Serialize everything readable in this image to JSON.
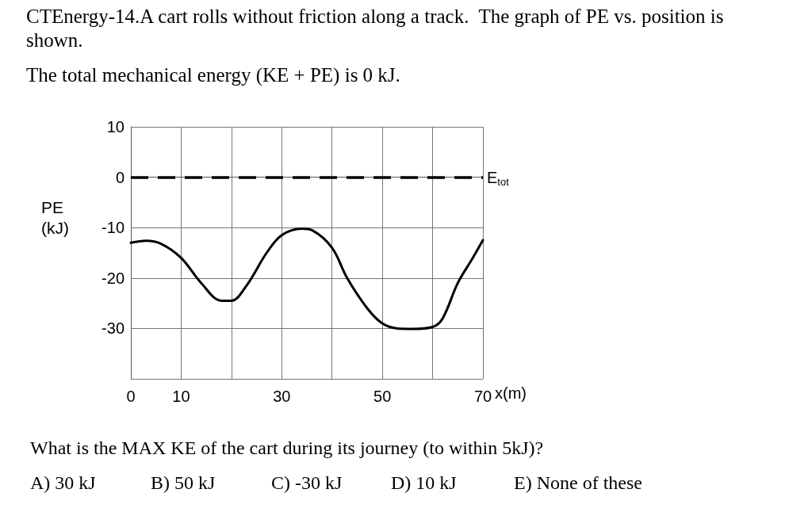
{
  "chart_data": {
    "type": "line",
    "title": "CTEnergy-14.A cart rolls without friction along a track.  The graph of PE vs. position is shown.",
    "subtitle": "The total mechanical energy (KE + PE) is 0 kJ.",
    "xlabel": "x(m)",
    "ylabel": "PE (kJ)",
    "x": [
      0,
      3,
      6,
      10,
      14,
      18,
      20,
      23,
      27,
      30,
      34,
      36,
      40,
      43,
      47,
      50,
      53,
      56,
      60,
      62,
      65,
      68,
      70
    ],
    "series": [
      {
        "color": "#000000",
        "values": [
          -13,
          -12.6,
          -13.2,
          -16,
          -21,
          -24.5,
          -24.5,
          -21.5,
          -15,
          -11.5,
          -10.2,
          -10.5,
          -14,
          -20,
          -26,
          -29,
          -30,
          -30.1,
          -29.7,
          -28,
          -21,
          -16,
          -12.5
        ]
      }
    ],
    "xlim": [
      0,
      70
    ],
    "xticks": [
      0,
      10,
      {
        "value": 20,
        "label": null
      },
      30,
      {
        "value": 40,
        "label": null
      },
      50,
      {
        "value": 60,
        "label": null
      },
      70
    ],
    "ylim": [
      -40,
      10
    ],
    "yticks": [
      {
        "value": -40,
        "label": null
      },
      -30,
      -20,
      -10,
      0,
      10
    ],
    "grid": true,
    "marker": "none",
    "line_style": "solid",
    "ref_lines": [
      {
        "axis": "y",
        "value": 0,
        "label": "E$_{tot}$",
        "line_style": "dashed",
        "color": "#000000"
      }
    ],
    "annotations": [
      "What is the MAX KE of the cart during its journey (to within 5kJ)?",
      "A) 30 kJ",
      "B) 50 kJ",
      "C) -30 kJ",
      "D) 10 kJ",
      "E) None of these"
    ]
  }
}
